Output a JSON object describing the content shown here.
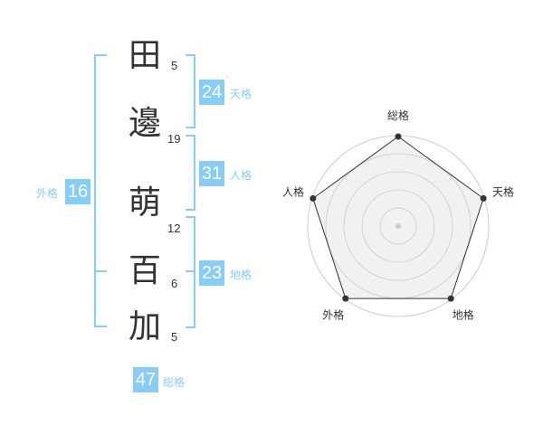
{
  "name": {
    "chars": [
      {
        "char": "田",
        "strokes": "5"
      },
      {
        "char": "邊",
        "strokes": "19"
      },
      {
        "char": "萌",
        "strokes": "12"
      },
      {
        "char": "百",
        "strokes": "6"
      },
      {
        "char": "加",
        "strokes": "5"
      }
    ]
  },
  "results": {
    "tenkaku": {
      "value": "24",
      "label": "天格"
    },
    "jinkaku": {
      "value": "31",
      "label": "人格"
    },
    "chikaku": {
      "value": "23",
      "label": "地格"
    },
    "gaikaku": {
      "value": "16",
      "label": "外格"
    },
    "soukaku": {
      "value": "47",
      "label": "総格"
    }
  },
  "accent_color": "#88ccf8",
  "chart_data": {
    "type": "radar",
    "axes": [
      "総格",
      "天格",
      "地格",
      "外格",
      "人格"
    ],
    "values": [
      5,
      5,
      5,
      5,
      5
    ],
    "range": [
      0,
      5
    ],
    "rings": 5
  }
}
